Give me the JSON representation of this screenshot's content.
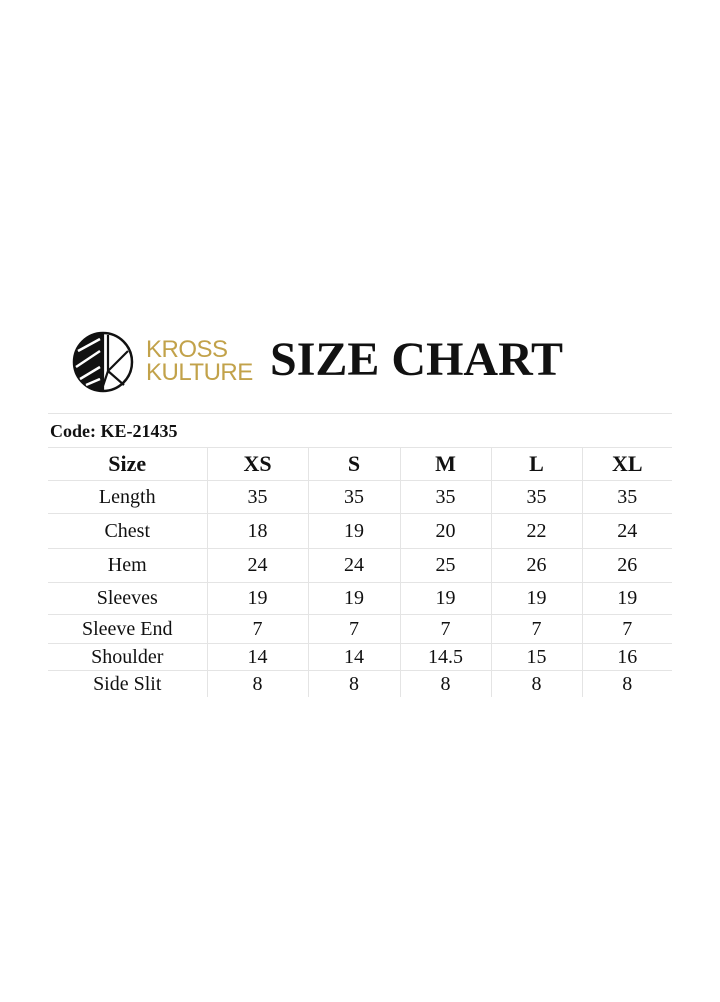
{
  "brand": {
    "line1": "KROSS",
    "line2": "KULTURE",
    "color": "#c2a24a"
  },
  "title": "SIZE CHART",
  "code": "Code: KE-21435",
  "table": {
    "header": [
      "Size",
      "XS",
      "S",
      "M",
      "L",
      "XL"
    ],
    "rows": [
      [
        "Length",
        "35",
        "35",
        "35",
        "35",
        "35"
      ],
      [
        "Chest",
        "18",
        "19",
        "20",
        "22",
        "24"
      ],
      [
        "Hem",
        "24",
        "24",
        "25",
        "26",
        "26"
      ],
      [
        "Sleeves",
        "19",
        "19",
        "19",
        "19",
        "19"
      ],
      [
        "Sleeve End",
        "7",
        "7",
        "7",
        "7",
        "7"
      ],
      [
        "Shoulder",
        "14",
        "14",
        "14.5",
        "15",
        "16"
      ],
      [
        "Side Slit",
        "8",
        "8",
        "8",
        "8",
        "8"
      ]
    ]
  }
}
